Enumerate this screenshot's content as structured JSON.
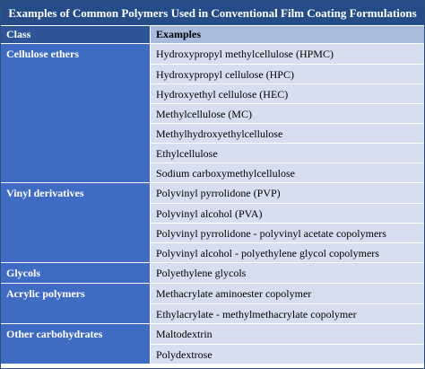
{
  "table": {
    "title": "Examples of Common Polymers Used in Conventional Film Coating Formulations",
    "headers": {
      "class": "Class",
      "examples": "Examples"
    },
    "groups": [
      {
        "class": "Cellulose ethers",
        "examples": [
          "Hydroxypropyl methylcellulose (HPMC)",
          "Hydroxypropyl cellulose (HPC)",
          "Hydroxyethyl cellulose (HEC)",
          "Methylcellulose (MC)",
          "Methylhydroxyethylcellulose",
          "Ethylcellulose",
          "Sodium carboxymethylcellulose"
        ]
      },
      {
        "class": "Vinyl derivatives",
        "examples": [
          "Polyvinyl pyrrolidone (PVP)",
          "Polyvinyl alcohol (PVA)",
          "Polyvinyl pyrrolidone - polyvinyl acetate copolymers",
          "Polyvinyl alcohol - polyethylene glycol copolymers"
        ]
      },
      {
        "class": "Glycols",
        "examples": [
          "Polyethylene glycols"
        ]
      },
      {
        "class": "Acrylic polymers",
        "examples": [
          "Methacrylate aminoester copolymer",
          "Ethylacrylate - methylmethacrylate copolymer"
        ]
      },
      {
        "class": "Other carbohydrates",
        "examples": [
          "Maltodextrin",
          "Polydextrose"
        ]
      }
    ],
    "colors": {
      "title_bg": "#254c86",
      "class_header_bg": "#2e5597",
      "examples_header_bg": "#a9bbdc",
      "class_cell_bg": "#3f6cc2",
      "example_cell_bg": "#d5dff0"
    }
  }
}
